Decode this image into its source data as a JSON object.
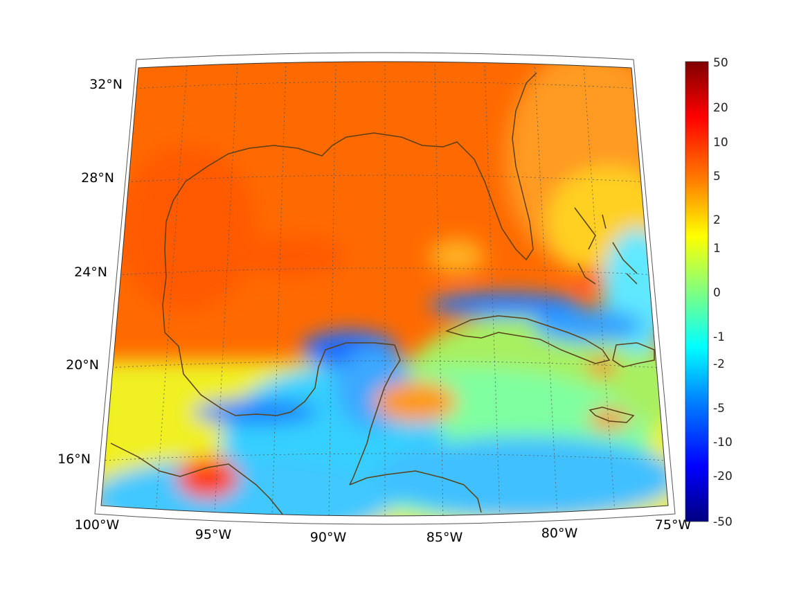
{
  "map": {
    "projection": "lambert-conformal-conic",
    "extent": {
      "lon_min": -100,
      "lon_max": -75,
      "lat_min": 14,
      "lat_max": 33
    },
    "grid": "dotted",
    "lat_labels": [
      {
        "value": 32,
        "text": "32°N"
      },
      {
        "value": 28,
        "text": "28°N"
      },
      {
        "value": 24,
        "text": "24°N"
      },
      {
        "value": 20,
        "text": "20°N"
      },
      {
        "value": 16,
        "text": "16°N"
      }
    ],
    "lon_labels": [
      {
        "value": -100,
        "text": "100°W"
      },
      {
        "value": -95,
        "text": "95°W"
      },
      {
        "value": -90,
        "text": "90°W"
      },
      {
        "value": -85,
        "text": "85°W"
      },
      {
        "value": -80,
        "text": "80°W"
      },
      {
        "value": -75,
        "text": "75°W"
      }
    ],
    "coast_color": "#5a3f16"
  },
  "colorbar": {
    "colormap": "jet",
    "scale": "nonlinear",
    "ticks": [
      "50",
      "20",
      "10",
      "5",
      "2",
      "1",
      "0",
      "-1",
      "-2",
      "-5",
      "-10",
      "-20",
      "-50"
    ],
    "colors": [
      "#800000",
      "#ff0000",
      "#ff8000",
      "#ffff00",
      "#80ff80",
      "#00ffff",
      "#0080ff",
      "#0000ff",
      "#000080"
    ]
  },
  "field": {
    "background_color": "#ff6a00",
    "regions": [
      {
        "name": "gulf-interior",
        "color": "#ff6a00"
      },
      {
        "name": "yucatan-south",
        "color": "#40b6ff"
      },
      {
        "name": "cuba-north",
        "color": "#1e7dff"
      },
      {
        "name": "caribbean",
        "color": "#ffe000"
      }
    ]
  }
}
